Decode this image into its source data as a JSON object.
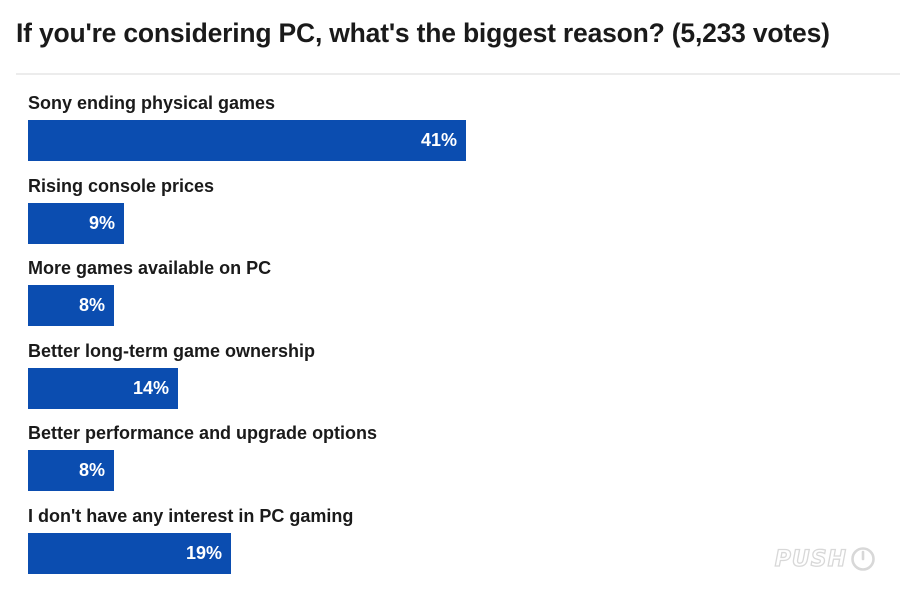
{
  "chart_data": {
    "type": "bar",
    "orientation": "horizontal",
    "title": "If you're considering PC, what's the biggest reason? (5,233 votes)",
    "categories": [
      "Sony ending physical games",
      "Rising console prices",
      "More games available on PC",
      "Better long-term game ownership",
      "Better performance and upgrade options",
      "I don't have any interest in PC gaming"
    ],
    "values": [
      41,
      9,
      8,
      14,
      8,
      19
    ],
    "value_labels": [
      "41%",
      "9%",
      "8%",
      "14%",
      "8%",
      "19%"
    ],
    "unit": "%",
    "xlim": [
      0,
      80
    ],
    "bar_color": "#0b4db0",
    "grid": false,
    "legend": "none"
  },
  "watermark": {
    "text": "PUSH",
    "icon": "power-icon",
    "color": "#d4d4d4"
  }
}
